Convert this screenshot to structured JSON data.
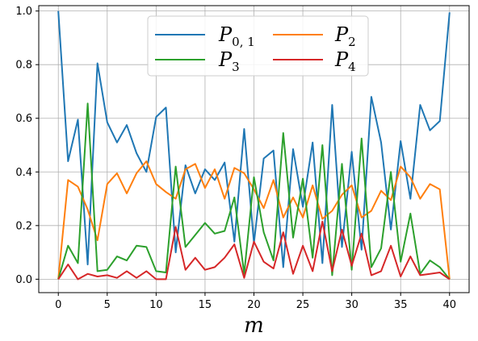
{
  "chart_data": {
    "type": "line",
    "title": "",
    "xlabel": "m",
    "ylabel": "",
    "xlim": [
      -2,
      42
    ],
    "ylim": [
      -0.05,
      1.02
    ],
    "xticks": [
      0,
      5,
      10,
      15,
      20,
      25,
      30,
      35,
      40
    ],
    "yticks": [
      0.0,
      0.2,
      0.4,
      0.6,
      0.8,
      1.0
    ],
    "xtick_labels": [
      "0",
      "5",
      "10",
      "15",
      "20",
      "25",
      "30",
      "35",
      "40"
    ],
    "ytick_labels": [
      "0.0",
      "0.2",
      "0.4",
      "0.6",
      "0.8",
      "1.0"
    ],
    "grid": true,
    "legend_position": "top-center",
    "legend_columns": 2,
    "x": [
      0,
      1,
      2,
      3,
      4,
      5,
      6,
      7,
      8,
      9,
      10,
      11,
      12,
      13,
      14,
      15,
      16,
      17,
      18,
      19,
      20,
      21,
      22,
      23,
      24,
      25,
      26,
      27,
      28,
      29,
      30,
      31,
      32,
      33,
      34,
      35,
      36,
      37,
      38,
      39,
      40
    ],
    "series": [
      {
        "name": "P",
        "subscript": "0, 1",
        "color": "#1f77b4",
        "values": [
          1.0,
          0.44,
          0.595,
          0.055,
          0.805,
          0.585,
          0.51,
          0.575,
          0.47,
          0.4,
          0.605,
          0.64,
          0.1,
          0.425,
          0.32,
          0.41,
          0.37,
          0.435,
          0.14,
          0.56,
          0.135,
          0.45,
          0.48,
          0.045,
          0.485,
          0.27,
          0.51,
          0.06,
          0.65,
          0.12,
          0.475,
          0.11,
          0.68,
          0.51,
          0.185,
          0.515,
          0.3,
          0.65,
          0.555,
          0.59,
          0.995
        ]
      },
      {
        "name": "P",
        "subscript": "2",
        "color": "#ff7f0e",
        "values": [
          0.0,
          0.37,
          0.345,
          0.26,
          0.145,
          0.355,
          0.395,
          0.32,
          0.395,
          0.44,
          0.355,
          0.325,
          0.3,
          0.41,
          0.43,
          0.34,
          0.41,
          0.3,
          0.415,
          0.395,
          0.335,
          0.265,
          0.37,
          0.23,
          0.305,
          0.23,
          0.35,
          0.225,
          0.255,
          0.315,
          0.35,
          0.23,
          0.255,
          0.33,
          0.295,
          0.42,
          0.38,
          0.3,
          0.355,
          0.335,
          0.0
        ]
      },
      {
        "name": "P",
        "subscript": "3",
        "color": "#2ca02c",
        "values": [
          0.0,
          0.125,
          0.06,
          0.655,
          0.03,
          0.035,
          0.085,
          0.07,
          0.125,
          0.12,
          0.03,
          0.025,
          0.42,
          0.12,
          0.165,
          0.21,
          0.17,
          0.18,
          0.305,
          0.02,
          0.38,
          0.175,
          0.07,
          0.545,
          0.155,
          0.375,
          0.08,
          0.5,
          0.015,
          0.43,
          0.035,
          0.525,
          0.045,
          0.115,
          0.4,
          0.065,
          0.245,
          0.02,
          0.07,
          0.045,
          0.0
        ]
      },
      {
        "name": "P",
        "subscript": "4",
        "color": "#d62728",
        "values": [
          0.0,
          0.055,
          0.0,
          0.02,
          0.01,
          0.015,
          0.005,
          0.03,
          0.005,
          0.03,
          0.0,
          0.0,
          0.195,
          0.035,
          0.08,
          0.035,
          0.045,
          0.08,
          0.13,
          0.005,
          0.14,
          0.065,
          0.04,
          0.175,
          0.02,
          0.125,
          0.03,
          0.215,
          0.03,
          0.185,
          0.05,
          0.17,
          0.015,
          0.03,
          0.125,
          0.01,
          0.085,
          0.015,
          0.02,
          0.025,
          0.0
        ]
      }
    ]
  }
}
